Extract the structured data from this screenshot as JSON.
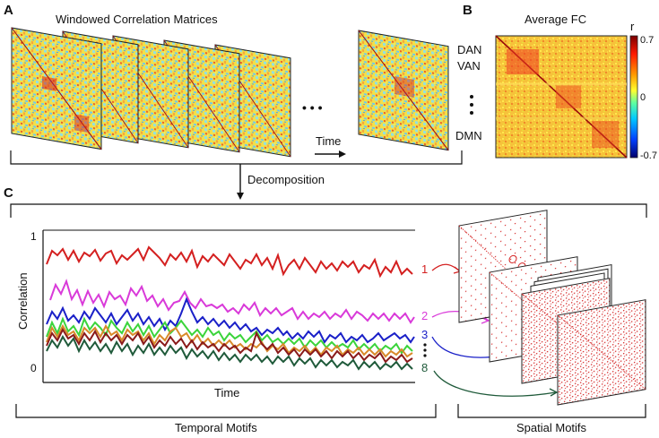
{
  "panels": {
    "a": {
      "letter": "A",
      "title": "Windowed Correlation Matrices",
      "ellipsis": "• • •",
      "time_label": "Time"
    },
    "b": {
      "letter": "B",
      "title": "Average FC",
      "colorbar_label": "r",
      "colorbar_ticks": [
        "0.7",
        "0",
        "-0.7"
      ],
      "network_labels": [
        "DAN",
        "VAN",
        "DMN"
      ]
    },
    "c": {
      "letter": "C",
      "decomposition_label": "Decomposition",
      "ylabel": "Correlation",
      "xlabel": "Time",
      "ytick_top": "1",
      "ytick_bottom": "0",
      "motif_numbers": [
        "1",
        "2",
        "3",
        "8"
      ],
      "temporal_label": "Temporal Motifs",
      "spatial_label": "Spatial Motifs"
    }
  },
  "colors": {
    "motif_1": "#d42020",
    "motif_2": "#d93ad9",
    "motif_3": "#1a20c8",
    "motif_8": "#1f5a3a",
    "other_green": "#3bd43b",
    "other_orange": "#d98a2a",
    "other_darkred": "#8a1a1a",
    "other_olive": "#6a7a2a"
  },
  "colorbar_range": [
    -0.7,
    0.7
  ]
}
